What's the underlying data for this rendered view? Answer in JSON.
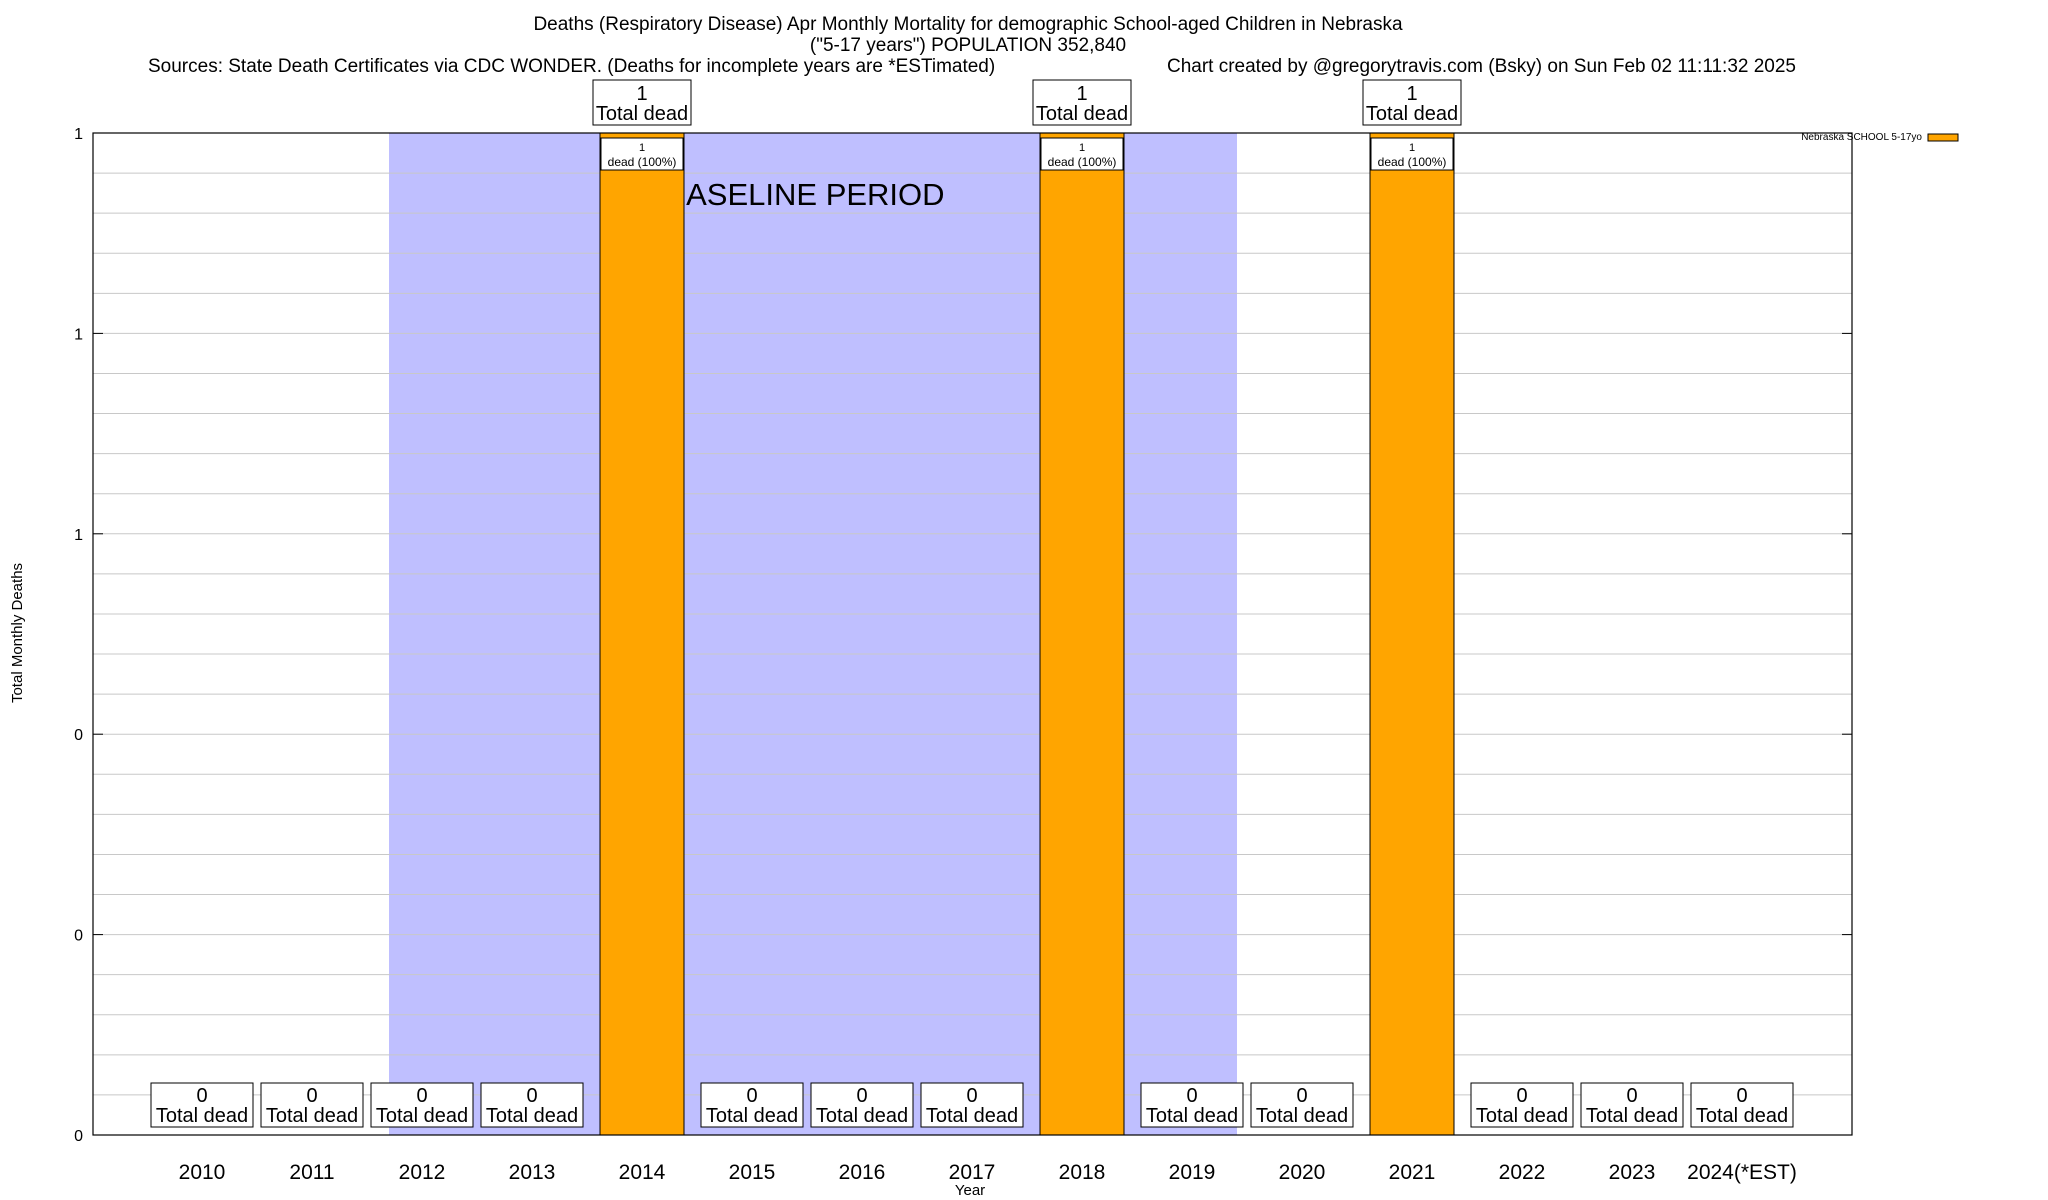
{
  "chart_data": {
    "type": "bar",
    "title": "Deaths (Respiratory Disease) Apr Monthly Mortality for demographic School-aged Children in Nebraska",
    "subtitle": "(\"5-17 years\") POPULATION 352,840",
    "sources": "Sources: State Death Certificates via CDC WONDER. (Deaths for incomplete years are *ESTimated)",
    "credit": "Chart created by @gregorytravis.com (Bsky) on Sun Feb 02 11:11:32 2025",
    "xlabel": "Year",
    "ylabel": "Total Monthly Deaths",
    "categories": [
      "2010",
      "2011",
      "2012",
      "2013",
      "2014",
      "2015",
      "2016",
      "2017",
      "2018",
      "2019",
      "2020",
      "2021",
      "2022",
      "2023",
      "2024(*EST)"
    ],
    "series": [
      {
        "name": "Nebraska SCHOOL 5-17yo",
        "values": [
          0,
          0,
          0,
          0,
          1,
          0,
          0,
          0,
          1,
          0,
          0,
          1,
          0,
          0,
          0
        ]
      }
    ],
    "ylim": [
      0,
      1
    ],
    "yticks": [
      {
        "value": 0,
        "label": "0"
      },
      {
        "value": 0.2,
        "label": "0"
      },
      {
        "value": 0.4,
        "label": "0"
      },
      {
        "value": 0.6,
        "label": "1"
      },
      {
        "value": 0.8,
        "label": "1"
      },
      {
        "value": 1,
        "label": "1"
      }
    ],
    "baseline_period": {
      "label": "BASELINE PERIOD",
      "from": "2012",
      "to": "2019"
    },
    "total_label_suffix": "Total dead",
    "bar_label_suffix": "dead (100%)",
    "grid": true,
    "legend": "top-right"
  },
  "colors": {
    "bar": "#ffa500",
    "baseline": "#bfbfff",
    "grid": "#c8c8c8",
    "axis": "#000000"
  }
}
